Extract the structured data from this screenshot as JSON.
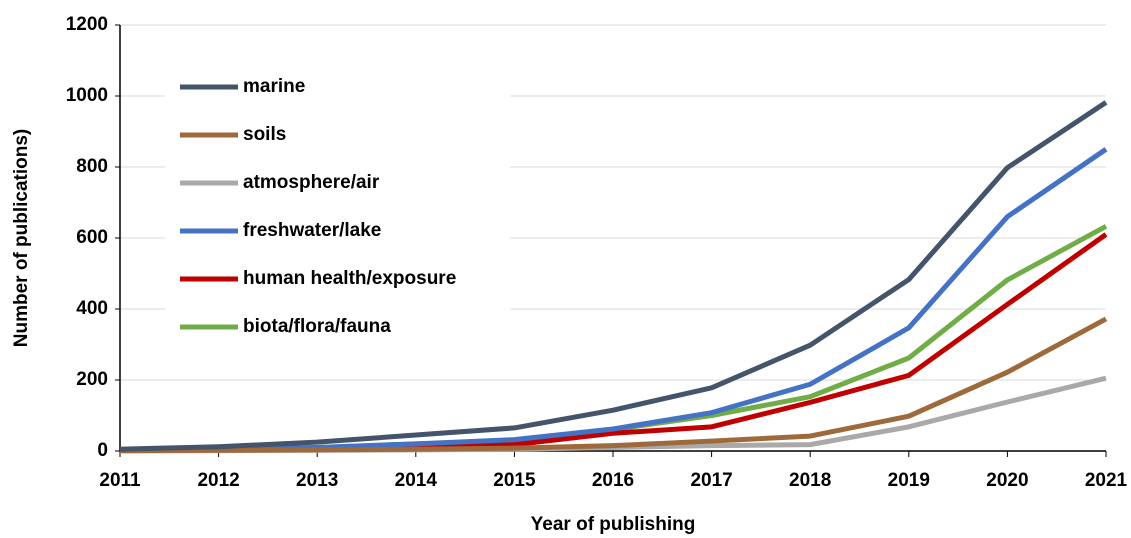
{
  "chart_data": {
    "type": "line",
    "x_label": "Year of publishing",
    "y_label": "Number of publications)",
    "x": [
      2011,
      2012,
      2013,
      2014,
      2015,
      2016,
      2017,
      2018,
      2019,
      2020,
      2021
    ],
    "xlim": [
      2011,
      2021
    ],
    "xticks": [
      2011,
      2012,
      2013,
      2014,
      2015,
      2016,
      2017,
      2018,
      2019,
      2020,
      2021
    ],
    "ylim": [
      0,
      1200
    ],
    "yticks": [
      0,
      200,
      400,
      600,
      800,
      1000,
      1200
    ],
    "grid": true,
    "legend": "upper left",
    "series": [
      {
        "name": "marine",
        "color": "#44546a",
        "values": [
          5,
          12,
          25,
          45,
          65,
          115,
          178,
          298,
          483,
          798,
          982
        ]
      },
      {
        "name": "soils",
        "color": "#9e6a3c",
        "values": [
          1,
          2,
          3,
          5,
          8,
          15,
          28,
          42,
          98,
          222,
          372
        ]
      },
      {
        "name": "atmosphere/air",
        "color": "#aba8a8",
        "values": [
          0,
          1,
          2,
          3,
          5,
          10,
          15,
          18,
          68,
          138,
          205
        ]
      },
      {
        "name": "freshwater/lake",
        "color": "#4472c4",
        "values": [
          2,
          5,
          10,
          20,
          32,
          62,
          108,
          188,
          347,
          660,
          850
        ]
      },
      {
        "name": "human health/exposure",
        "color": "#c00000",
        "values": [
          1,
          2,
          3,
          8,
          18,
          50,
          68,
          137,
          213,
          413,
          610
        ]
      },
      {
        "name": "biota/flora/fauna",
        "color": "#70ad47",
        "values": [
          2,
          5,
          10,
          20,
          28,
          60,
          100,
          153,
          262,
          482,
          633
        ]
      }
    ]
  }
}
